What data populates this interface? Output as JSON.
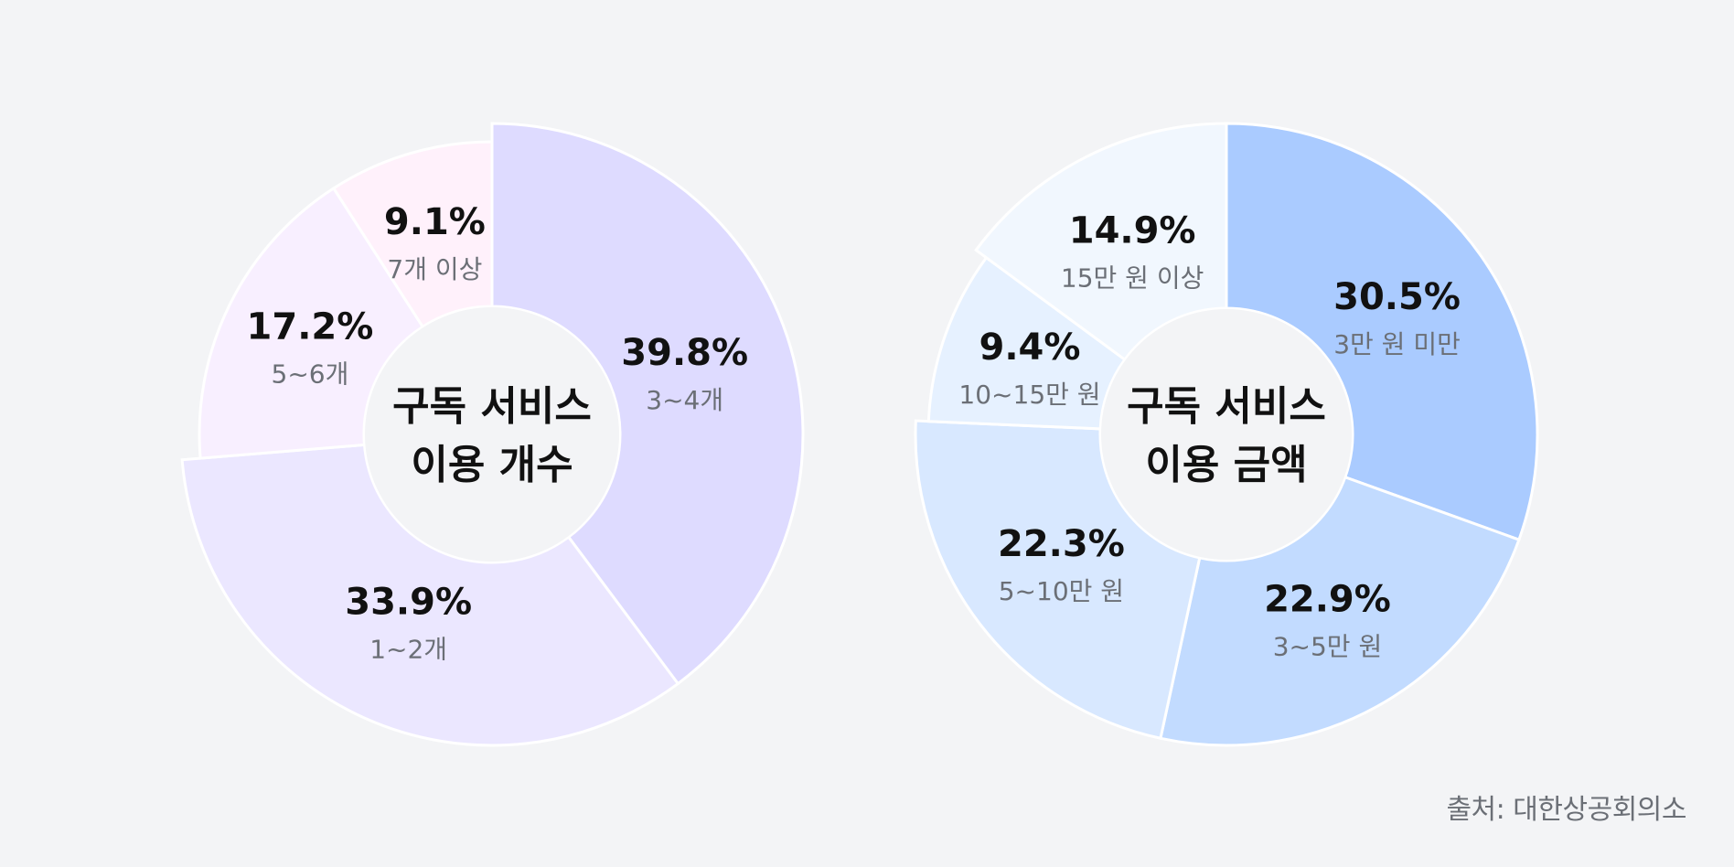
{
  "chart_data": [
    {
      "type": "pie",
      "title": "구독 서비스\n이용 개수",
      "title_lines": [
        "구독 서비스",
        "이용 개수"
      ],
      "categories": [
        "3~4개",
        "1~2개",
        "5~6개",
        "7개 이상"
      ],
      "values": [
        39.8,
        33.9,
        17.2,
        9.1
      ],
      "value_labels": [
        "39.8%",
        "33.9%",
        "17.2%",
        "9.1%"
      ],
      "colors": [
        "#dedbff",
        "#ebe7ff",
        "#f8efff",
        "#fff1fb"
      ]
    },
    {
      "type": "pie",
      "title": "구독 서비스\n이용 금액",
      "title_lines": [
        "구독 서비스",
        "이용 금액"
      ],
      "categories": [
        "3만 원 미만",
        "3~5만 원",
        "5~10만 원",
        "10~15만 원",
        "15만 원 이상"
      ],
      "values": [
        30.5,
        22.9,
        22.3,
        9.4,
        14.9
      ],
      "value_labels": [
        "30.5%",
        "22.9%",
        "22.3%",
        "9.4%",
        "14.9%"
      ],
      "colors": [
        "#aacbff",
        "#c2dbff",
        "#d8e8ff",
        "#e6f1ff",
        "#f1f7fe"
      ]
    }
  ],
  "source": "출처: 대한상공회의소"
}
